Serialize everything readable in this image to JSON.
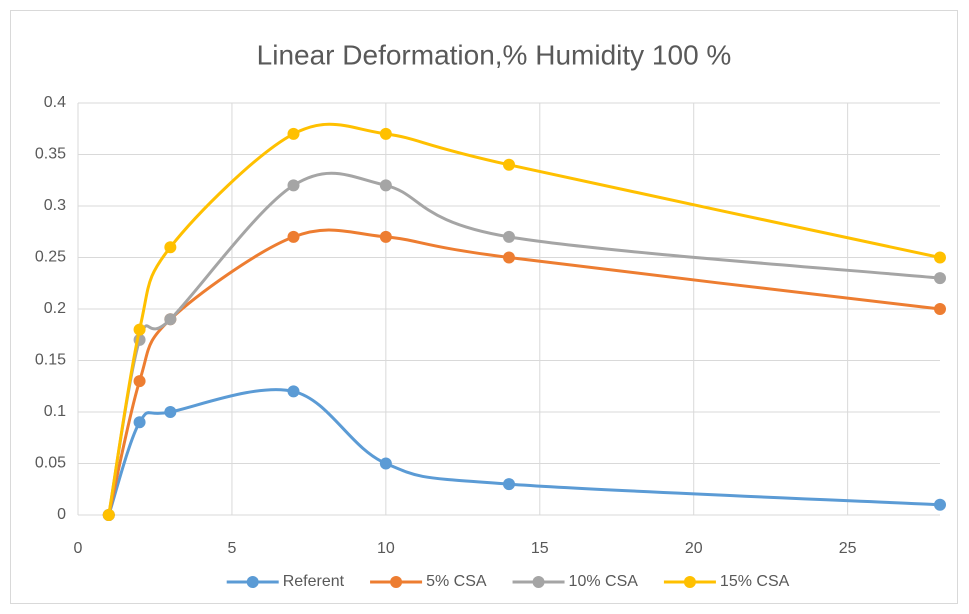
{
  "chart_data": {
    "type": "line",
    "title": "Linear Deformation,% Humidity 100 %",
    "x": [
      1,
      2,
      3,
      7,
      10,
      14,
      28
    ],
    "series": [
      {
        "name": "Referent",
        "color": "#5b9bd5",
        "values": [
          0,
          0.09,
          0.1,
          0.12,
          0.05,
          0.03,
          0.01
        ]
      },
      {
        "name": "5% CSA",
        "color": "#ed7d31",
        "values": [
          0,
          0.13,
          0.19,
          0.27,
          0.27,
          0.25,
          0.2
        ]
      },
      {
        "name": "10% CSA",
        "color": "#a5a5a5",
        "values": [
          0,
          0.17,
          0.19,
          0.32,
          0.32,
          0.27,
          0.23
        ]
      },
      {
        "name": "15% CSA",
        "color": "#ffc000",
        "values": [
          0,
          0.18,
          0.26,
          0.37,
          0.37,
          0.34,
          0.25
        ]
      }
    ],
    "xlim": [
      0,
      28
    ],
    "xticks": [
      0,
      5,
      10,
      15,
      20,
      25
    ],
    "ylim": [
      0,
      0.4
    ],
    "yticks": [
      0,
      0.05,
      0.1,
      0.15,
      0.2,
      0.25,
      0.3,
      0.35,
      0.4
    ],
    "grid": true,
    "smooth": true,
    "legend": "bottom"
  }
}
